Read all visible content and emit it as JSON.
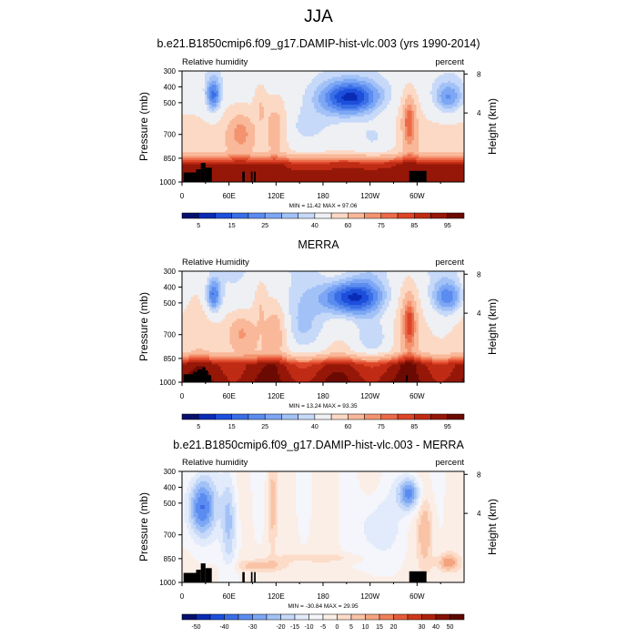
{
  "title": "JJA",
  "chart_data": [
    {
      "type": "heatmap",
      "title": "b.e21.B1850cmip6.f09_g17.DAMIP-hist-vlc.003 (yrs 1990-2014)",
      "left_label": "Relative humidity",
      "right_label": "percent",
      "ylabel": "Pressure (mb)",
      "ylabel_right": "Height (km)",
      "ylim": [
        1000,
        300
      ],
      "y_ticks": [
        300,
        400,
        500,
        700,
        850,
        1000
      ],
      "y_right_ticks": [
        4,
        8
      ],
      "x_ticks": [
        "0",
        "60E",
        "120E",
        "180",
        "120W",
        "60W"
      ],
      "x_tick_lons": [
        0,
        60,
        120,
        180,
        240,
        300
      ],
      "xlim": [
        0,
        360
      ],
      "stats": "MIN = 11.42  MAX = 97.06",
      "min": 11.42,
      "max": 97.06,
      "colorbar_levels": [
        5,
        10,
        15,
        20,
        25,
        30,
        35,
        40,
        50,
        60,
        70,
        75,
        80,
        85,
        90,
        95
      ],
      "colorbar_labels": [
        "5",
        "15",
        "25",
        "40",
        "60",
        "75",
        "85",
        "95"
      ],
      "field": "full"
    },
    {
      "type": "heatmap",
      "title": "MERRA",
      "left_label": "Relative Humidity",
      "right_label": "percent",
      "ylabel": "Pressure (mb)",
      "ylabel_right": "Height (km)",
      "ylim": [
        1000,
        300
      ],
      "y_ticks": [
        300,
        400,
        500,
        700,
        850,
        1000
      ],
      "y_right_ticks": [
        4,
        8
      ],
      "x_ticks": [
        "0",
        "60E",
        "120E",
        "180",
        "120W",
        "60W"
      ],
      "x_tick_lons": [
        0,
        60,
        120,
        180,
        240,
        300
      ],
      "xlim": [
        0,
        360
      ],
      "stats": "MIN = 13.24  MAX = 93.35",
      "min": 13.24,
      "max": 93.35,
      "colorbar_levels": [
        5,
        10,
        15,
        20,
        25,
        30,
        35,
        40,
        50,
        60,
        70,
        75,
        80,
        85,
        90,
        95
      ],
      "colorbar_labels": [
        "5",
        "15",
        "25",
        "40",
        "60",
        "75",
        "85",
        "95"
      ],
      "field": "obs"
    },
    {
      "type": "heatmap",
      "title": "b.e21.B1850cmip6.f09_g17.DAMIP-hist-vlc.003 - MERRA",
      "left_label": "Relative humidity",
      "right_label": "percent",
      "ylabel": "Pressure (mb)",
      "ylabel_right": "Height (km)",
      "ylim": [
        1000,
        300
      ],
      "y_ticks": [
        300,
        400,
        500,
        700,
        850,
        1000
      ],
      "y_right_ticks": [
        4,
        8
      ],
      "x_ticks": [
        "0",
        "60E",
        "120E",
        "180",
        "120W",
        "60W"
      ],
      "x_tick_lons": [
        0,
        60,
        120,
        180,
        240,
        300
      ],
      "xlim": [
        0,
        360
      ],
      "stats": "MIN = -30.84  MAX = 29.95",
      "min": -30.84,
      "max": 29.95,
      "colorbar_levels": [
        -50,
        -45,
        -40,
        -35,
        -30,
        -25,
        -20,
        -15,
        -10,
        -5,
        0,
        5,
        10,
        15,
        20,
        25,
        30,
        40,
        50
      ],
      "colorbar_labels": [
        "-50",
        "-40",
        "-30",
        "-20",
        "-15",
        "-10",
        "-5",
        "0",
        "5",
        "10",
        "15",
        "20",
        "30",
        "40",
        "50"
      ],
      "field": "diff"
    }
  ]
}
